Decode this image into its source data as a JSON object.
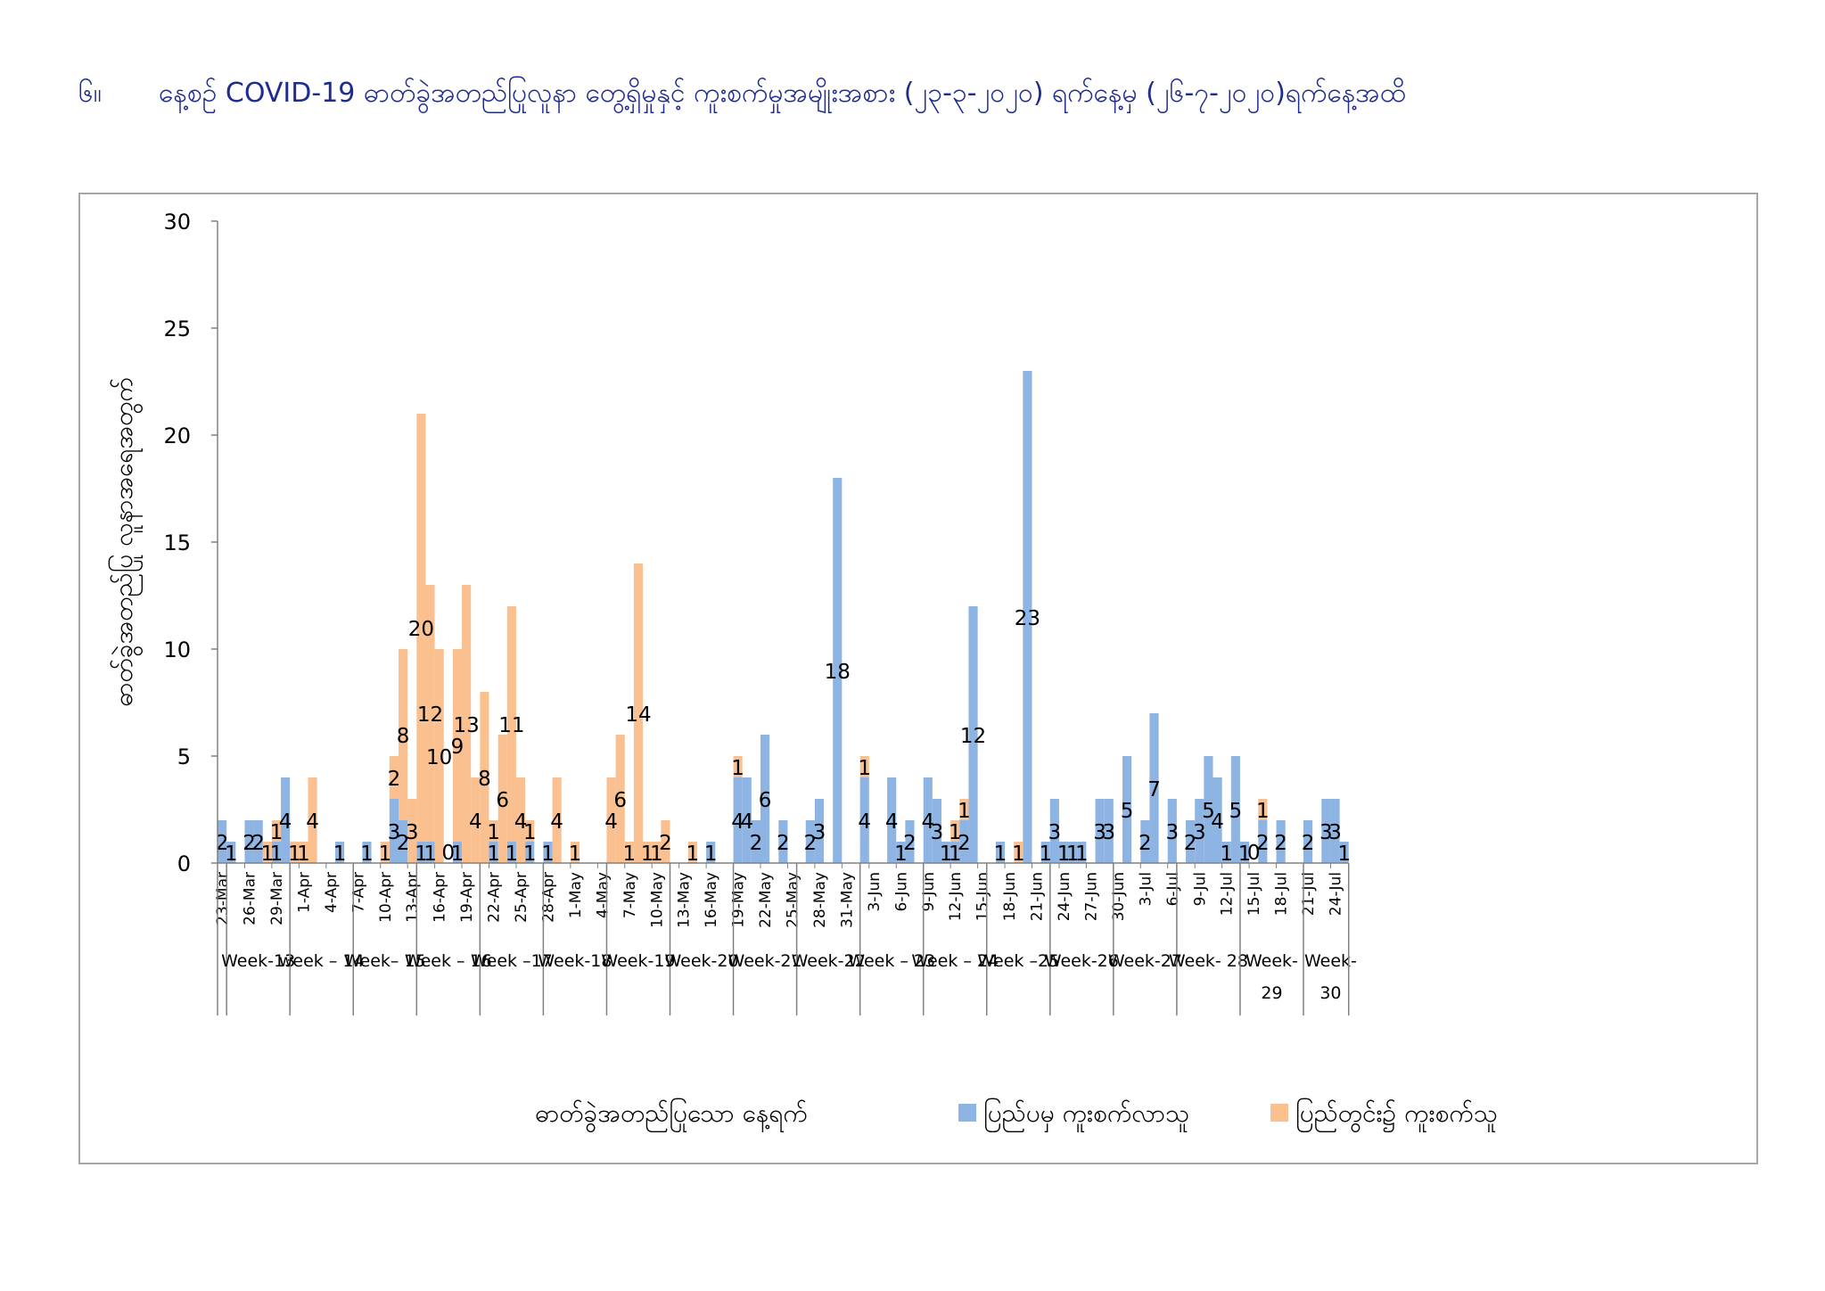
{
  "page": {
    "number": "၆။",
    "title": "နေ့စဉ် COVID-19 ဓာတ်ခွဲအတည်ပြုလူနာ တွေ့ရှိမှုနှင့် ကူးစက်မှုအမျိုးအစား (၂၃-၃-၂၀၂၀) ရက်နေ့မှ (၂၆-၇-၂၀၂၀)ရက်နေ့အထိ"
  },
  "colors": {
    "imported": "#8eb4e3",
    "local": "#fac090",
    "axis": "#808080",
    "title": "#1f2c8f"
  },
  "chart_data": {
    "type": "bar",
    "stacked": true,
    "xlabel": "ဓာတ်ခွဲအတည်ပြုသော နေ့ရက်",
    "ylabel": "ဓာတ်ခွဲအတည်ပြု လူနာအရေအတွက်",
    "ylim": [
      0,
      30
    ],
    "yticks": [
      "0",
      "5",
      "10",
      "15",
      "20",
      "25",
      "30"
    ],
    "legend_position": "bottom-right",
    "x_tick_labels": [
      {
        "day": 1,
        "label": "23-Mar"
      },
      {
        "day": 4,
        "label": "26-Mar"
      },
      {
        "day": 7,
        "label": "29-Mar"
      },
      {
        "day": 10,
        "label": "1-Apr"
      },
      {
        "day": 13,
        "label": "4-Apr"
      },
      {
        "day": 16,
        "label": "7-Apr"
      },
      {
        "day": 19,
        "label": "10-Apr"
      },
      {
        "day": 22,
        "label": "13-Apr"
      },
      {
        "day": 25,
        "label": "16-Apr"
      },
      {
        "day": 28,
        "label": "19-Apr"
      },
      {
        "day": 31,
        "label": "22-Apr"
      },
      {
        "day": 34,
        "label": "25-Apr"
      },
      {
        "day": 37,
        "label": "28-Apr"
      },
      {
        "day": 40,
        "label": "1-May"
      },
      {
        "day": 43,
        "label": "4-May"
      },
      {
        "day": 46,
        "label": "7-May"
      },
      {
        "day": 49,
        "label": "10-May"
      },
      {
        "day": 52,
        "label": "13-May"
      },
      {
        "day": 55,
        "label": "16-May"
      },
      {
        "day": 58,
        "label": "19-May"
      },
      {
        "day": 61,
        "label": "22-May"
      },
      {
        "day": 64,
        "label": "25-May"
      },
      {
        "day": 67,
        "label": "28-May"
      },
      {
        "day": 70,
        "label": "31-May"
      },
      {
        "day": 73,
        "label": "3-Jun"
      },
      {
        "day": 76,
        "label": "6-Jun"
      },
      {
        "day": 79,
        "label": "9-Jun"
      },
      {
        "day": 82,
        "label": "12-Jun"
      },
      {
        "day": 85,
        "label": "15-Jun"
      },
      {
        "day": 88,
        "label": "18-Jun"
      },
      {
        "day": 91,
        "label": "21-Jun"
      },
      {
        "day": 94,
        "label": "24-Jun"
      },
      {
        "day": 97,
        "label": "27-Jun"
      },
      {
        "day": 100,
        "label": "30-Jun"
      },
      {
        "day": 103,
        "label": "3-Jul"
      },
      {
        "day": 106,
        "label": "6-Jul"
      },
      {
        "day": 109,
        "label": "9-Jul"
      },
      {
        "day": 112,
        "label": "12-Jul"
      },
      {
        "day": 115,
        "label": "15-Jul"
      },
      {
        "day": 118,
        "label": "18-Jul"
      },
      {
        "day": 121,
        "label": "21-Jul"
      },
      {
        "day": 124,
        "label": "24-Jul"
      }
    ],
    "weeks": [
      {
        "label": "",
        "start": 1,
        "end": 1
      },
      {
        "label": "Week-13",
        "start": 2,
        "end": 8
      },
      {
        "label": "week – 14",
        "start": 9,
        "end": 15
      },
      {
        "label": "Week– 15",
        "start": 16,
        "end": 22
      },
      {
        "label": "Week – 16",
        "start": 23,
        "end": 29
      },
      {
        "label": "Week –17",
        "start": 30,
        "end": 36
      },
      {
        "label": "Week-18",
        "start": 37,
        "end": 43
      },
      {
        "label": "Week-19",
        "start": 44,
        "end": 50
      },
      {
        "label": "Week-20",
        "start": 51,
        "end": 57
      },
      {
        "label": "Week-21",
        "start": 58,
        "end": 64
      },
      {
        "label": "Week-22",
        "start": 65,
        "end": 71
      },
      {
        "label": "Week – 23",
        "start": 72,
        "end": 78
      },
      {
        "label": "Week – 24",
        "start": 79,
        "end": 85
      },
      {
        "label": "Week –25",
        "start": 86,
        "end": 92
      },
      {
        "label": "Week-26",
        "start": 93,
        "end": 99
      },
      {
        "label": "Week-27",
        "start": 100,
        "end": 106
      },
      {
        "label": "Week- 28",
        "start": 107,
        "end": 113
      },
      {
        "label": "Week-\n29",
        "start": 114,
        "end": 120
      },
      {
        "label": "Week-\n30",
        "start": 121,
        "end": 126
      }
    ],
    "series": [
      {
        "name": "ပြည်ပမှ ကူးစက်လာသူ",
        "points": [
          {
            "day": 1,
            "value": 2
          },
          {
            "day": 2,
            "value": 1
          },
          {
            "day": 4,
            "value": 2
          },
          {
            "day": 5,
            "value": 2
          },
          {
            "day": 7,
            "value": 1
          },
          {
            "day": 8,
            "value": 4
          },
          {
            "day": 14,
            "value": 1
          },
          {
            "day": 17,
            "value": 1
          },
          {
            "day": 20,
            "value": 3
          },
          {
            "day": 21,
            "value": 2
          },
          {
            "day": 23,
            "value": 1
          },
          {
            "day": 24,
            "value": 1
          },
          {
            "day": 27,
            "value": 1
          },
          {
            "day": 31,
            "value": 1
          },
          {
            "day": 33,
            "value": 1
          },
          {
            "day": 35,
            "value": 1
          },
          {
            "day": 37,
            "value": 1
          },
          {
            "day": 55,
            "value": 1
          },
          {
            "day": 58,
            "value": 4
          },
          {
            "day": 59,
            "value": 4
          },
          {
            "day": 60,
            "value": 2
          },
          {
            "day": 61,
            "value": 6
          },
          {
            "day": 63,
            "value": 2
          },
          {
            "day": 66,
            "value": 2
          },
          {
            "day": 67,
            "value": 3
          },
          {
            "day": 69,
            "value": 18
          },
          {
            "day": 72,
            "value": 4
          },
          {
            "day": 75,
            "value": 4
          },
          {
            "day": 76,
            "value": 1
          },
          {
            "day": 77,
            "value": 2
          },
          {
            "day": 79,
            "value": 4
          },
          {
            "day": 80,
            "value": 3
          },
          {
            "day": 81,
            "value": 1
          },
          {
            "day": 82,
            "value": 1
          },
          {
            "day": 83,
            "value": 2
          },
          {
            "day": 84,
            "value": 12
          },
          {
            "day": 87,
            "value": 1
          },
          {
            "day": 90,
            "value": 23
          },
          {
            "day": 92,
            "value": 1
          },
          {
            "day": 93,
            "value": 3
          },
          {
            "day": 94,
            "value": 1
          },
          {
            "day": 95,
            "value": 1
          },
          {
            "day": 96,
            "value": 1
          },
          {
            "day": 98,
            "value": 3
          },
          {
            "day": 99,
            "value": 3
          },
          {
            "day": 101,
            "value": 5
          },
          {
            "day": 103,
            "value": 2
          },
          {
            "day": 104,
            "value": 7
          },
          {
            "day": 106,
            "value": 3
          },
          {
            "day": 108,
            "value": 2
          },
          {
            "day": 109,
            "value": 3
          },
          {
            "day": 110,
            "value": 5
          },
          {
            "day": 111,
            "value": 4
          },
          {
            "day": 112,
            "value": 1
          },
          {
            "day": 113,
            "value": 5
          },
          {
            "day": 114,
            "value": 1
          },
          {
            "day": 115,
            "value": 0
          },
          {
            "day": 116,
            "value": 2
          },
          {
            "day": 118,
            "value": 2
          },
          {
            "day": 121,
            "value": 2
          },
          {
            "day": 123,
            "value": 3
          },
          {
            "day": 124,
            "value": 3
          },
          {
            "day": 125,
            "value": 1
          }
        ]
      },
      {
        "name": "ပြည်တွင်း၌ ကူးစက်သူ",
        "points": [
          {
            "day": 6,
            "value": 1
          },
          {
            "day": 7,
            "value": 1
          },
          {
            "day": 9,
            "value": 1
          },
          {
            "day": 10,
            "value": 1
          },
          {
            "day": 11,
            "value": 4
          },
          {
            "day": 20,
            "value": 2
          },
          {
            "day": 19,
            "value": 1
          },
          {
            "day": 21,
            "value": 8
          },
          {
            "day": 22,
            "value": 3
          },
          {
            "day": 23,
            "value": 20
          },
          {
            "day": 24,
            "value": 12
          },
          {
            "day": 25,
            "value": 10
          },
          {
            "day": 26,
            "value": 0
          },
          {
            "day": 27,
            "value": 9
          },
          {
            "day": 28,
            "value": 13
          },
          {
            "day": 29,
            "value": 4
          },
          {
            "day": 30,
            "value": 8
          },
          {
            "day": 31,
            "value": 1
          },
          {
            "day": 32,
            "value": 6
          },
          {
            "day": 33,
            "value": 11
          },
          {
            "day": 34,
            "value": 4
          },
          {
            "day": 35,
            "value": 1
          },
          {
            "day": 38,
            "value": 4
          },
          {
            "day": 40,
            "value": 1
          },
          {
            "day": 44,
            "value": 4
          },
          {
            "day": 45,
            "value": 6
          },
          {
            "day": 46,
            "value": 1
          },
          {
            "day": 47,
            "value": 14
          },
          {
            "day": 48,
            "value": 1
          },
          {
            "day": 49,
            "value": 1
          },
          {
            "day": 50,
            "value": 2
          },
          {
            "day": 53,
            "value": 1
          },
          {
            "day": 58,
            "value": 1
          },
          {
            "day": 72,
            "value": 1
          },
          {
            "day": 82,
            "value": 1
          },
          {
            "day": 83,
            "value": 1
          },
          {
            "day": 89,
            "value": 1
          },
          {
            "day": 116,
            "value": 1
          }
        ]
      }
    ]
  }
}
